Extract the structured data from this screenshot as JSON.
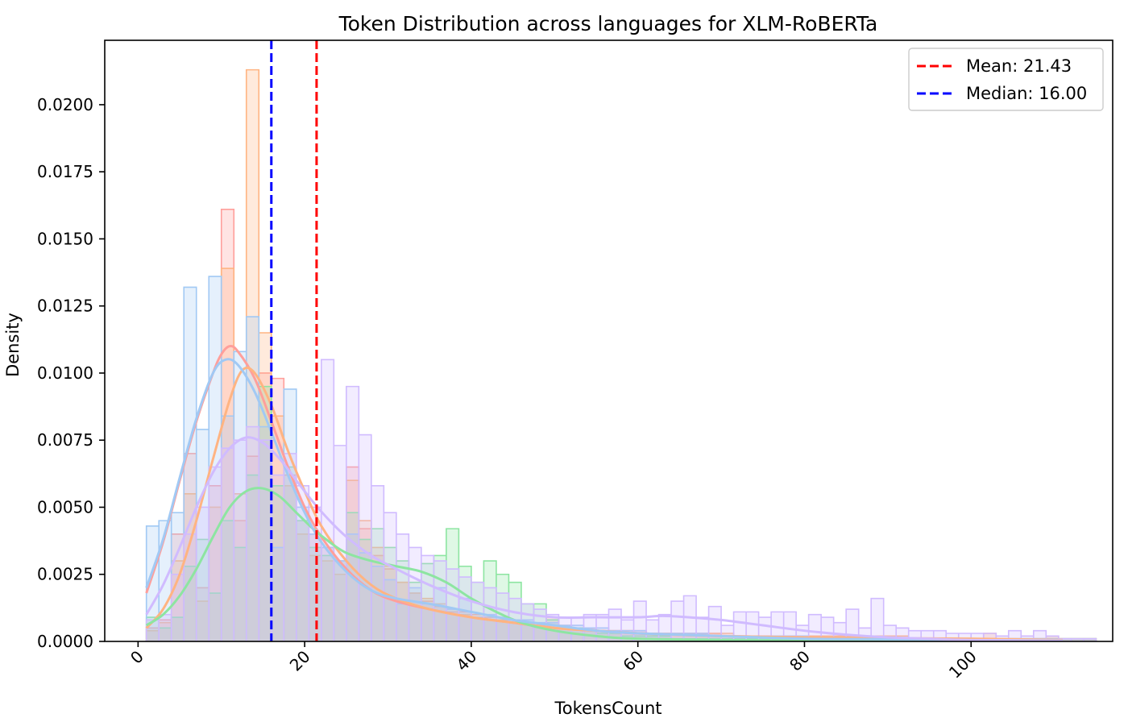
{
  "chart_data": {
    "type": "histogram",
    "title": "Token Distribution across languages for XLM-RoBERTa",
    "xlabel": "TokensCount",
    "ylabel": "Density",
    "xlim": [
      -4,
      117
    ],
    "ylim": [
      0,
      0.0224
    ],
    "xticks": [
      0,
      20,
      40,
      60,
      80,
      100
    ],
    "yticks": [
      0,
      0.0025,
      0.005,
      0.0075,
      0.01,
      0.0125,
      0.015,
      0.0175,
      0.02
    ],
    "ytick_labels": [
      "0.0000",
      "0.0025",
      "0.0050",
      "0.0075",
      "0.0100",
      "0.0125",
      "0.0150",
      "0.0175",
      "0.0200"
    ],
    "xtick_rotation_deg": 45,
    "grid": false,
    "legend_position": "top-right",
    "bins": {
      "start": 1,
      "width": 1.5
    },
    "series": [
      {
        "color": "#ff9f9b",
        "densities": [
          0.0005,
          0.0008,
          0.004,
          0.007,
          0.002,
          0.0058,
          0.0161,
          0.0045,
          0.0069,
          0.01,
          0.0098,
          0.0062,
          0.0045,
          0.004,
          0.0035,
          0.003,
          0.0065,
          0.0042,
          0.0032,
          0.0027,
          0.0022,
          0.0018,
          0.0015,
          0.0013,
          0.0011,
          0.0011,
          0.001,
          0.0009,
          0.0008,
          0.0007,
          0.0007,
          0.0006,
          0.0006,
          0.0005,
          0.0005,
          0.0005,
          0.0004,
          0.0004,
          0.0004,
          0.0004,
          0.0003,
          0.0003,
          0.0003,
          0.0003,
          0.0003,
          0.0003,
          0.0002,
          0.0002,
          0.0002,
          0.0002,
          0.0002,
          0.0002,
          0.0002,
          0.0002,
          0.0002,
          0.0002,
          0.0001,
          0.0002,
          0.0001,
          0.0001,
          0.0001,
          0.0001,
          0.0001,
          0.0001,
          0.0001,
          0.0001,
          0.0001,
          0.0001,
          0.0001,
          0.0001,
          0.0001,
          0.0001,
          0.0001,
          0.0001,
          0.0001,
          0.0001
        ],
        "kde": [
          [
            1,
            0.0018
          ],
          [
            3,
            0.0037
          ],
          [
            5,
            0.006
          ],
          [
            7,
            0.0082
          ],
          [
            9,
            0.01
          ],
          [
            10,
            0.0107
          ],
          [
            11,
            0.011
          ],
          [
            12,
            0.0108
          ],
          [
            14,
            0.0098
          ],
          [
            16,
            0.0082
          ],
          [
            18,
            0.0065
          ],
          [
            20,
            0.005
          ],
          [
            22,
            0.0039
          ],
          [
            25,
            0.0027
          ],
          [
            28,
            0.0019
          ],
          [
            31,
            0.0015
          ],
          [
            35,
            0.0012
          ],
          [
            40,
            0.0009
          ],
          [
            45,
            0.0007
          ],
          [
            50,
            0.0005
          ],
          [
            55,
            0.0004
          ],
          [
            60,
            0.0003
          ],
          [
            70,
            0.0002
          ],
          [
            80,
            0.00015
          ],
          [
            90,
            0.0001
          ],
          [
            100,
            7e-05
          ],
          [
            111,
            5e-05
          ]
        ]
      },
      {
        "color": "#ffb482",
        "densities": [
          0.0004,
          0.0007,
          0.003,
          0.0055,
          0.0015,
          0.005,
          0.0139,
          0.0055,
          0.0213,
          0.0115,
          0.0084,
          0.0058,
          0.004,
          0.0032,
          0.003,
          0.0025,
          0.006,
          0.0045,
          0.0035,
          0.0028,
          0.0022,
          0.0018,
          0.0016,
          0.0014,
          0.0012,
          0.001,
          0.0009,
          0.0008,
          0.0008,
          0.0007,
          0.0007,
          0.0006,
          0.0009,
          0.0006,
          0.0005,
          0.0005,
          0.0004,
          0.0004,
          0.0004,
          0.0003,
          0.0003,
          0.0003,
          0.0003,
          0.0003,
          0.0003,
          0.0003,
          0.0003,
          0.0002,
          0.0002,
          0.0002,
          0.0002,
          0.0002,
          0.0002,
          0.0002,
          0.0002,
          0.0002,
          0.0002,
          0.0002,
          0.0002,
          0.0002,
          0.0002,
          0.0001,
          0.0001,
          0.0001,
          0.0001,
          0.0001,
          0.0001,
          0.0003,
          0.0001,
          0.0001,
          0.0001,
          0.0001,
          0.0002,
          0.0001,
          0.0001,
          0.0001
        ],
        "kde": [
          [
            1,
            0.0005
          ],
          [
            3,
            0.0012
          ],
          [
            5,
            0.0025
          ],
          [
            7,
            0.0045
          ],
          [
            9,
            0.0068
          ],
          [
            11,
            0.009
          ],
          [
            12.5,
            0.0101
          ],
          [
            14,
            0.01
          ],
          [
            16,
            0.0088
          ],
          [
            18,
            0.0071
          ],
          [
            20,
            0.0056
          ],
          [
            22,
            0.0043
          ],
          [
            25,
            0.003
          ],
          [
            28,
            0.0021
          ],
          [
            31,
            0.0016
          ],
          [
            35,
            0.0012
          ],
          [
            40,
            0.0009
          ],
          [
            45,
            0.0007
          ],
          [
            50,
            0.0005
          ],
          [
            55,
            0.0004
          ],
          [
            60,
            0.0003
          ],
          [
            70,
            0.0002
          ],
          [
            80,
            0.00015
          ],
          [
            90,
            0.00012
          ],
          [
            100,
            0.0001
          ],
          [
            111,
            5e-05
          ]
        ]
      },
      {
        "color": "#8de5a1",
        "densities": [
          0.0009,
          0.0005,
          0.0009,
          0.0028,
          0.0038,
          0.0018,
          0.0045,
          0.0035,
          0.0062,
          0.0095,
          0.0058,
          0.0065,
          0.0045,
          0.0035,
          0.0032,
          0.003,
          0.0048,
          0.0038,
          0.0042,
          0.0035,
          0.003,
          0.0022,
          0.0029,
          0.0032,
          0.0042,
          0.0028,
          0.0022,
          0.003,
          0.0025,
          0.0022,
          0.0014,
          0.0014,
          0.0008,
          0.0005,
          0.0005,
          0.0004,
          0.0003,
          0.0003,
          0.0002,
          0.0002,
          0.0002,
          0.0002,
          0.0001,
          0.0001,
          0.0001,
          0.0001,
          0.0001,
          0.0001,
          0.0001,
          0.0001,
          0.0001,
          0.0001,
          0.0001,
          0.0001,
          0.0001,
          0.0001,
          0.0001,
          0.0001,
          0.0001,
          0.0001,
          0.0001,
          0.0001,
          0.0001,
          0.0001,
          0.0001,
          0.0001,
          0.0001,
          0.0001,
          0.0001,
          0.0001,
          0.0001,
          0.0001,
          0.0001,
          0.0001,
          0.0001,
          0.0001
        ],
        "kde": [
          [
            1,
            0.0006
          ],
          [
            3,
            0.001
          ],
          [
            5,
            0.0017
          ],
          [
            7,
            0.0027
          ],
          [
            9,
            0.0039
          ],
          [
            11,
            0.005
          ],
          [
            13,
            0.0056
          ],
          [
            15,
            0.0057
          ],
          [
            17,
            0.0054
          ],
          [
            19,
            0.0048
          ],
          [
            21,
            0.0042
          ],
          [
            23,
            0.0037
          ],
          [
            25,
            0.0033
          ],
          [
            28,
            0.003
          ],
          [
            31,
            0.0028
          ],
          [
            34,
            0.0026
          ],
          [
            37,
            0.0022
          ],
          [
            40,
            0.0016
          ],
          [
            43,
            0.0011
          ],
          [
            46,
            0.0007
          ],
          [
            50,
            0.0004
          ],
          [
            55,
            0.0002
          ],
          [
            60,
            0.0001
          ],
          [
            70,
            5e-05
          ],
          [
            80,
            3e-05
          ],
          [
            100,
            1e-05
          ],
          [
            111,
            1e-05
          ]
        ]
      },
      {
        "color": "#a1c9f4",
        "densities": [
          0.0043,
          0.0045,
          0.0048,
          0.0132,
          0.0079,
          0.0136,
          0.0084,
          0.0108,
          0.0121,
          0.008,
          0.0035,
          0.0094,
          0.005,
          0.004,
          0.0035,
          0.003,
          0.004,
          0.0033,
          0.0028,
          0.0023,
          0.0014,
          0.002,
          0.0014,
          0.002,
          0.0012,
          0.0016,
          0.0009,
          0.001,
          0.0009,
          0.0008,
          0.0008,
          0.0007,
          0.0007,
          0.0006,
          0.0006,
          0.0005,
          0.0005,
          0.0004,
          0.0004,
          0.0004,
          0.0003,
          0.0003,
          0.0003,
          0.0003,
          0.0003,
          0.0002,
          0.0002,
          0.0002,
          0.0002,
          0.0002,
          0.0002,
          0.0002,
          0.0002,
          0.0001,
          0.0001,
          0.0001,
          0.0001,
          0.0001,
          0.0001,
          0.0001,
          0.0001,
          0.0001,
          0.0001,
          0.0001,
          0.0001,
          0.0001,
          0.0001,
          0.0001,
          0.0001,
          0.0001,
          0.0001,
          0.0001,
          0.0001,
          0.0001,
          0.0001,
          0.0001
        ],
        "kde": [
          [
            1,
            0.002
          ],
          [
            3,
            0.0038
          ],
          [
            5,
            0.0061
          ],
          [
            7,
            0.0083
          ],
          [
            9,
            0.01
          ],
          [
            10.5,
            0.0105
          ],
          [
            12,
            0.0103
          ],
          [
            14,
            0.0093
          ],
          [
            16,
            0.0078
          ],
          [
            18,
            0.0062
          ],
          [
            20,
            0.0048
          ],
          [
            22,
            0.0037
          ],
          [
            25,
            0.0026
          ],
          [
            28,
            0.0019
          ],
          [
            31,
            0.0016
          ],
          [
            35,
            0.0014
          ],
          [
            40,
            0.0011
          ],
          [
            45,
            0.0008
          ],
          [
            50,
            0.0006
          ],
          [
            55,
            0.0004
          ],
          [
            60,
            0.0003
          ],
          [
            70,
            0.0002
          ],
          [
            80,
            0.0001
          ],
          [
            90,
            8e-05
          ],
          [
            100,
            5e-05
          ],
          [
            111,
            3e-05
          ]
        ]
      },
      {
        "color": "#d0bbff",
        "densities": [
          0.0008,
          0.001,
          0.0025,
          0.004,
          0.005,
          0.0065,
          0.0072,
          0.0075,
          0.008,
          0.0075,
          0.0062,
          0.007,
          0.0058,
          0.005,
          0.0105,
          0.0073,
          0.0095,
          0.0077,
          0.0058,
          0.0048,
          0.004,
          0.0035,
          0.0032,
          0.003,
          0.0027,
          0.0024,
          0.0022,
          0.002,
          0.0018,
          0.0016,
          0.0014,
          0.0012,
          0.001,
          0.0009,
          0.0009,
          0.001,
          0.001,
          0.0012,
          0.0008,
          0.0015,
          0.0008,
          0.001,
          0.0015,
          0.0017,
          0.0009,
          0.0013,
          0.0006,
          0.0011,
          0.0011,
          0.0009,
          0.0011,
          0.0011,
          0.0006,
          0.001,
          0.0009,
          0.0007,
          0.0012,
          0.0005,
          0.0016,
          0.0006,
          0.0005,
          0.0004,
          0.0004,
          0.0004,
          0.0003,
          0.0003,
          0.0003,
          0.0003,
          0.0002,
          0.0004,
          0.0002,
          0.0004,
          0.0002,
          0.0001,
          0.0001,
          0.0001
        ],
        "kde": [
          [
            1,
            0.001
          ],
          [
            3,
            0.0021
          ],
          [
            5,
            0.0035
          ],
          [
            7,
            0.005
          ],
          [
            9,
            0.0063
          ],
          [
            11,
            0.0072
          ],
          [
            13,
            0.0076
          ],
          [
            15,
            0.0074
          ],
          [
            17,
            0.0068
          ],
          [
            19,
            0.006
          ],
          [
            21,
            0.0052
          ],
          [
            23,
            0.0045
          ],
          [
            25,
            0.0039
          ],
          [
            28,
            0.0032
          ],
          [
            31,
            0.0027
          ],
          [
            35,
            0.0021
          ],
          [
            40,
            0.0015
          ],
          [
            45,
            0.0011
          ],
          [
            50,
            0.0009
          ],
          [
            55,
            0.0009
          ],
          [
            60,
            0.0009
          ],
          [
            63,
            0.00095
          ],
          [
            66,
            0.0009
          ],
          [
            70,
            0.0008
          ],
          [
            75,
            0.0006
          ],
          [
            80,
            0.0004
          ],
          [
            85,
            0.00025
          ],
          [
            90,
            0.00015
          ],
          [
            95,
            0.0001
          ],
          [
            100,
            5e-05
          ],
          [
            111,
            2e-05
          ]
        ]
      }
    ],
    "reference_lines": [
      {
        "value": 21.43,
        "color": "#ff0000",
        "label": "Mean: 21.43"
      },
      {
        "value": 16.0,
        "color": "#0000ff",
        "label": "Median: 16.00"
      }
    ]
  }
}
